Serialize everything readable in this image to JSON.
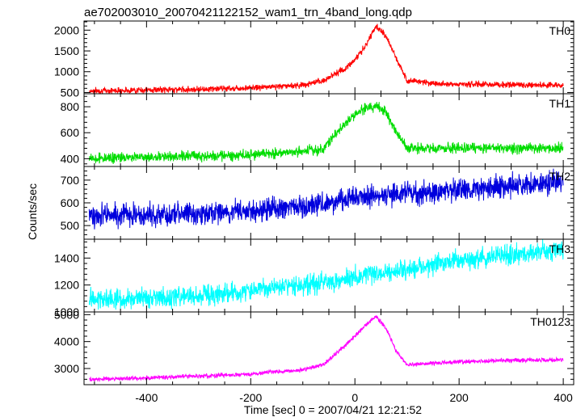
{
  "chart_data": {
    "type": "line",
    "title": "ae702003010_20070421122152_wam1_trn_4band_long.qdp",
    "xlabel": "Time [sec] 0 = 2007/04/21 12:21:52",
    "ylabel": "Counts/sec",
    "xlim": [
      -520,
      420
    ],
    "xticks": [
      -400,
      -200,
      0,
      200,
      400
    ],
    "grid": false,
    "panels": [
      {
        "name": "TH0",
        "color": "#ff0000",
        "ylim": [
          470,
          2220
        ],
        "yticks": [
          500,
          1000,
          1500,
          2000
        ],
        "noise": 55,
        "x": [
          -510,
          -450,
          -400,
          -300,
          -200,
          -100,
          -60,
          -40,
          -20,
          0,
          20,
          40,
          60,
          80,
          100,
          150,
          200,
          300,
          400
        ],
        "y": [
          540,
          550,
          560,
          580,
          610,
          680,
          780,
          950,
          1050,
          1300,
          1600,
          2100,
          1850,
          1300,
          800,
          720,
          700,
          690,
          670
        ]
      },
      {
        "name": "TH1",
        "color": "#00dd00",
        "ylim": [
          340,
          900
        ],
        "yticks": [
          400,
          600,
          800
        ],
        "noise": 30,
        "x": [
          -510,
          -400,
          -300,
          -200,
          -100,
          -60,
          -30,
          0,
          20,
          40,
          60,
          80,
          100,
          150,
          200,
          300,
          400
        ],
        "y": [
          400,
          410,
          420,
          430,
          450,
          480,
          620,
          740,
          790,
          800,
          760,
          600,
          480,
          480,
          480,
          480,
          480
        ]
      },
      {
        "name": "TH2",
        "color": "#0000dd",
        "ylim": [
          440,
          760
        ],
        "yticks": [
          500,
          600,
          700
        ],
        "noise": 38,
        "x": [
          -510,
          -400,
          -300,
          -200,
          -100,
          0,
          100,
          200,
          300,
          400
        ],
        "y": [
          545,
          548,
          555,
          565,
          585,
          620,
          640,
          655,
          675,
          690
        ]
      },
      {
        "name": "TH3",
        "color": "#00ffff",
        "ylim": [
          1000,
          1540
        ],
        "yticks": [
          1000,
          1200,
          1400
        ],
        "noise": 55,
        "x": [
          -510,
          -400,
          -300,
          -200,
          -100,
          0,
          100,
          200,
          300,
          400
        ],
        "y": [
          1090,
          1100,
          1120,
          1160,
          1200,
          1260,
          1320,
          1380,
          1430,
          1460
        ]
      },
      {
        "name": "TH0123",
        "color": "#ff00ff",
        "ylim": [
          2400,
          5100
        ],
        "yticks": [
          3000,
          4000,
          5000
        ],
        "noise": 60,
        "x": [
          -510,
          -400,
          -300,
          -200,
          -100,
          -60,
          -30,
          0,
          20,
          40,
          60,
          80,
          100,
          150,
          200,
          300,
          400
        ],
        "y": [
          2600,
          2650,
          2720,
          2800,
          2950,
          3150,
          3650,
          4200,
          4600,
          4950,
          4500,
          3600,
          3150,
          3200,
          3250,
          3300,
          3320
        ]
      }
    ]
  }
}
